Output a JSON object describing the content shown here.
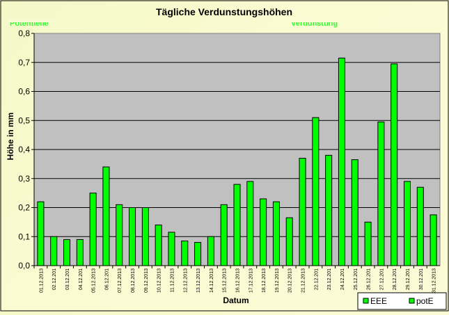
{
  "chart_data": {
    "type": "bar",
    "title": "Tägliche Verdunstungshöhen",
    "xlabel": "Datum",
    "ylabel": "Höhe in mm",
    "ylim": [
      0,
      0.8
    ],
    "yticks": [
      "0,0",
      "0,1",
      "0,2",
      "0,3",
      "0,4",
      "0,5",
      "0,6",
      "0,7",
      "0,8"
    ],
    "categories": [
      "01.12.2013",
      "02.12.201",
      "03.12.201",
      "04.12.201",
      "05.12.2013",
      "06.12.201",
      "07.12.2013",
      "08.12.2013",
      "09.12.2013",
      "10.12.2013",
      "11.12.2013",
      "12.12.2013",
      "13.12.2013",
      "14.12.2013",
      "15.12.2013",
      "16.12.2013",
      "17.12.2013",
      "18.12.2013",
      "19.12.2013",
      "20.12.2013",
      "21.12.2013",
      "22.12.201",
      "23.12.201",
      "24.12.201",
      "25.12.201",
      "26.12.201",
      "27.12.201",
      "28.12.201",
      "29.12.201",
      "30.12.201",
      "31.12.2013"
    ],
    "series": [
      {
        "name": "potE",
        "color": "#00ff00",
        "values": [
          0.22,
          0.1,
          0.09,
          0.09,
          0.25,
          0.34,
          0.21,
          0.2,
          0.2,
          0.14,
          0.115,
          0.085,
          0.08,
          0.1,
          0.21,
          0.28,
          0.29,
          0.23,
          0.22,
          0.165,
          0.37,
          0.51,
          0.38,
          0.715,
          0.365,
          0.15,
          0.495,
          0.695,
          0.29,
          0.27,
          0.175
        ]
      }
    ],
    "legend": {
      "placement": "bottom-right",
      "entries": [
        {
          "label": "EEE",
          "color": "#00ff00"
        },
        {
          "label": "potE",
          "color": "#00ff00"
        }
      ]
    },
    "annotations": [
      "Potentielle",
      "Verdunstung"
    ],
    "grid": true,
    "plot_background": "#c0c0c0",
    "bar_color": "#00ff00",
    "annotation_color": "#33ff33"
  }
}
